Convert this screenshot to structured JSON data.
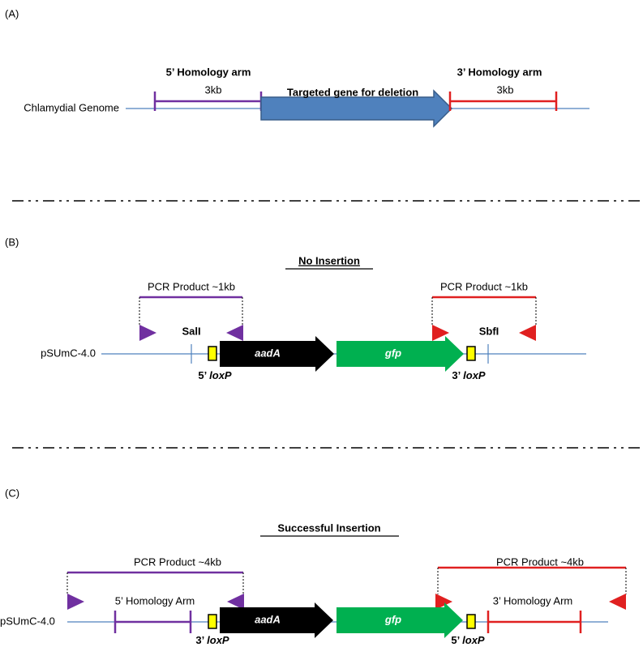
{
  "panel_a": {
    "label": "(A)",
    "genome_label": "Chlamydial Genome",
    "left_arm": {
      "title": "5’ Homology arm",
      "size": "3kb"
    },
    "gene": "Targeted gene for deletion",
    "right_arm": {
      "title": "3’ Homology arm",
      "size": "3kb"
    }
  },
  "panel_b": {
    "label": "(B)",
    "title": "No Insertion",
    "plasmid": "pSUmC-4.0",
    "left_pcr": "PCR Product ~1kb",
    "right_pcr": "PCR Product ~1kb",
    "sites": [
      "SalI",
      "SbfI"
    ],
    "genes": [
      "aadA",
      "gfp"
    ],
    "loxp": [
      {
        "prime": "5’",
        "name": "loxP"
      },
      {
        "prime": "3’",
        "name": "loxP"
      }
    ]
  },
  "panel_c": {
    "label": "(C)",
    "title": "Successful Insertion",
    "plasmid": "pSUmC-4.0",
    "left_pcr": "PCR Product ~4kb",
    "right_pcr": "PCR Product ~4kb",
    "arms": [
      "5’ Homology Arm",
      "3’ Homology Arm"
    ],
    "genes": [
      "aadA",
      "gfp"
    ],
    "loxp": [
      {
        "prime": "3’",
        "name": "loxP"
      },
      {
        "prime": "5’",
        "name": "loxP"
      }
    ]
  }
}
